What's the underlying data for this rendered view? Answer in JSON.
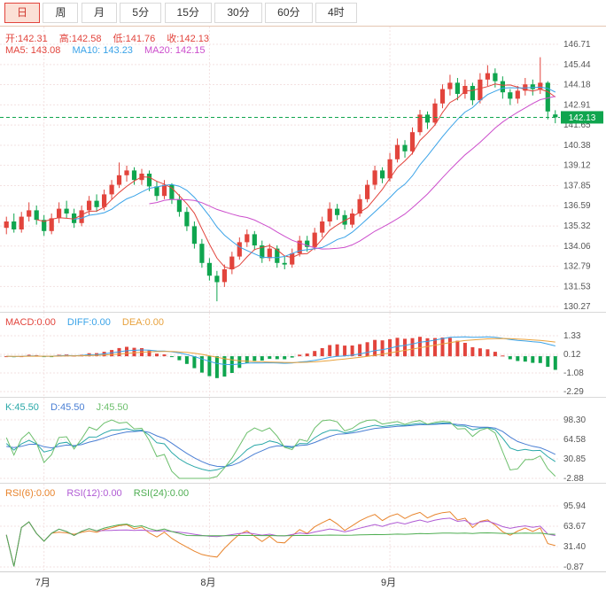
{
  "toolbar": {
    "tabs": [
      {
        "label": "日",
        "active": true
      },
      {
        "label": "周",
        "active": false
      },
      {
        "label": "月",
        "active": false
      },
      {
        "label": "5分",
        "active": false
      },
      {
        "label": "15分",
        "active": false
      },
      {
        "label": "30分",
        "active": false
      },
      {
        "label": "60分",
        "active": false
      },
      {
        "label": "4时",
        "active": false
      }
    ]
  },
  "main_chart": {
    "ohlc": {
      "open": "开:142.31",
      "high": "高:142.58",
      "low": "低:141.76",
      "close": "收:142.13"
    },
    "ma": {
      "ma5": "MA5: 143.08",
      "ma10": "MA10: 143.23",
      "ma20": "MA20: 142.15"
    },
    "y_ticks": [
      "146.71",
      "145.44",
      "144.18",
      "142.91",
      "141.65",
      "140.38",
      "139.12",
      "137.85",
      "136.59",
      "135.32",
      "134.06",
      "132.79",
      "131.53",
      "130.27"
    ],
    "price_marker": "142.13"
  },
  "macd_panel": {
    "label_macd": "MACD:0.00",
    "label_diff": "DIFF:0.00",
    "label_dea": "DEA:0.00",
    "y_ticks": [
      "1.33",
      "0.12",
      "-1.08",
      "-2.29"
    ]
  },
  "kdj_panel": {
    "label_k": "K:45.50",
    "label_d": "D:45.50",
    "label_j": "J:45.50",
    "y_ticks": [
      "98.30",
      "64.58",
      "30.85",
      "-2.88"
    ]
  },
  "rsi_panel": {
    "label_rsi6": "RSI(6):0.00",
    "label_rsi12": "RSI(12):0.00",
    "label_rsi24": "RSI(24):0.00",
    "y_ticks": [
      "95.94",
      "63.67",
      "31.40",
      "-0.87"
    ]
  },
  "colors": {
    "up": "#e2443c",
    "down": "#0fa54e",
    "marker_bg": "#0fa54e",
    "ma5": "#e2443c",
    "ma10": "#3aa3e8",
    "ma20": "#cc4ecc",
    "diff": "#3aa3e8",
    "dea": "#e8a23d",
    "k": "#2aa8a8",
    "d": "#4a7fd4",
    "j": "#6cbf6c",
    "rsi6": "#e8842c",
    "rsi12": "#b05bd4",
    "rsi24": "#4fae52",
    "grid": "#f3e1e1",
    "axis_text": "#555555"
  },
  "chart_data": {
    "type": "candlestick",
    "period": "日",
    "current_ohlc": {
      "open": 142.31,
      "high": 142.58,
      "low": 141.76,
      "close": 142.13
    },
    "overlays": [
      "MA5",
      "MA10",
      "MA20"
    ],
    "indicator_panels": [
      "MACD(12,26,9)",
      "KDJ(9,3,3)",
      "RSI(6,12,24)"
    ],
    "y_range_main": [
      130.27,
      146.71
    ],
    "y_range_macd": [
      -2.29,
      1.33
    ],
    "y_range_kdj": [
      -2.88,
      98.3
    ],
    "y_range_rsi": [
      -0.87,
      95.94
    ],
    "last_price": 142.13,
    "months": [
      {
        "label": "7月",
        "index": 5
      },
      {
        "label": "8月",
        "index": 27
      },
      {
        "label": "9月",
        "index": 51
      }
    ],
    "candles": [
      [
        135.2,
        135.9,
        134.8,
        135.6
      ],
      [
        135.6,
        136.1,
        134.9,
        135.1
      ],
      [
        135.1,
        136.2,
        134.9,
        135.9
      ],
      [
        135.9,
        136.8,
        135.6,
        136.3
      ],
      [
        136.3,
        136.6,
        135.4,
        135.7
      ],
      [
        135.7,
        136.0,
        134.7,
        135.0
      ],
      [
        135.0,
        136.1,
        134.8,
        135.8
      ],
      [
        135.8,
        136.8,
        135.5,
        136.4
      ],
      [
        136.4,
        136.9,
        135.8,
        136.1
      ],
      [
        136.1,
        136.4,
        135.2,
        135.5
      ],
      [
        135.5,
        136.6,
        135.3,
        136.3
      ],
      [
        136.3,
        137.2,
        136.0,
        136.9
      ],
      [
        136.9,
        137.3,
        136.2,
        136.5
      ],
      [
        136.5,
        137.6,
        136.3,
        137.3
      ],
      [
        137.3,
        138.2,
        137.0,
        137.9
      ],
      [
        137.9,
        139.3,
        137.7,
        138.5
      ],
      [
        138.5,
        139.1,
        138.1,
        138.8
      ],
      [
        138.8,
        139.0,
        137.9,
        138.2
      ],
      [
        138.2,
        138.9,
        137.9,
        138.6
      ],
      [
        138.6,
        138.8,
        137.5,
        137.8
      ],
      [
        137.8,
        138.1,
        136.9,
        137.2
      ],
      [
        137.2,
        138.2,
        137.0,
        137.9
      ],
      [
        137.9,
        138.0,
        136.7,
        137.0
      ],
      [
        137.0,
        137.3,
        135.9,
        136.2
      ],
      [
        136.2,
        136.5,
        135.0,
        135.3
      ],
      [
        135.3,
        135.6,
        133.9,
        134.2
      ],
      [
        134.2,
        134.5,
        132.7,
        133.0
      ],
      [
        133.0,
        133.3,
        131.9,
        132.2
      ],
      [
        132.2,
        132.5,
        130.6,
        131.8
      ],
      [
        131.8,
        132.9,
        131.5,
        132.6
      ],
      [
        132.6,
        133.7,
        132.3,
        133.4
      ],
      [
        133.4,
        134.6,
        133.2,
        134.3
      ],
      [
        134.3,
        135.1,
        134.0,
        134.8
      ],
      [
        134.8,
        135.0,
        133.8,
        134.1
      ],
      [
        134.1,
        134.4,
        133.0,
        133.3
      ],
      [
        133.3,
        134.2,
        133.1,
        133.9
      ],
      [
        133.9,
        134.1,
        132.7,
        133.0
      ],
      [
        133.0,
        133.4,
        132.6,
        132.9
      ],
      [
        132.9,
        133.9,
        132.7,
        133.6
      ],
      [
        133.6,
        134.7,
        133.4,
        134.4
      ],
      [
        134.4,
        134.7,
        133.7,
        134.0
      ],
      [
        134.0,
        135.2,
        133.8,
        134.9
      ],
      [
        134.9,
        135.9,
        134.6,
        135.6
      ],
      [
        135.6,
        136.8,
        135.3,
        136.4
      ],
      [
        136.4,
        136.7,
        135.7,
        136.0
      ],
      [
        136.0,
        136.3,
        135.1,
        135.4
      ],
      [
        135.4,
        136.4,
        135.2,
        136.1
      ],
      [
        136.1,
        137.3,
        135.9,
        137.0
      ],
      [
        137.0,
        138.2,
        136.8,
        137.9
      ],
      [
        137.9,
        139.1,
        137.6,
        138.8
      ],
      [
        138.8,
        139.0,
        138.0,
        138.3
      ],
      [
        138.3,
        139.9,
        138.1,
        139.5
      ],
      [
        139.5,
        140.8,
        139.3,
        140.4
      ],
      [
        140.4,
        140.7,
        139.6,
        140.0
      ],
      [
        140.0,
        141.5,
        139.8,
        141.2
      ],
      [
        141.2,
        142.6,
        141.0,
        142.3
      ],
      [
        142.3,
        142.5,
        141.4,
        141.8
      ],
      [
        141.8,
        143.3,
        141.6,
        143.0
      ],
      [
        143.0,
        144.2,
        142.7,
        143.9
      ],
      [
        143.9,
        144.8,
        143.5,
        144.3
      ],
      [
        144.3,
        144.6,
        143.2,
        143.6
      ],
      [
        143.6,
        144.5,
        143.3,
        144.1
      ],
      [
        144.1,
        144.3,
        142.9,
        143.2
      ],
      [
        143.2,
        144.9,
        143.0,
        144.5
      ],
      [
        144.5,
        145.4,
        144.1,
        144.9
      ],
      [
        144.9,
        145.2,
        144.0,
        144.4
      ],
      [
        144.4,
        144.7,
        143.3,
        143.7
      ],
      [
        143.7,
        143.9,
        142.9,
        143.3
      ],
      [
        143.3,
        144.1,
        143.0,
        143.8
      ],
      [
        143.8,
        144.6,
        143.5,
        144.2
      ],
      [
        144.2,
        144.5,
        143.5,
        143.9
      ],
      [
        143.9,
        145.9,
        143.6,
        144.3
      ],
      [
        144.3,
        144.4,
        142.0,
        142.5
      ],
      [
        142.31,
        142.58,
        141.76,
        142.13
      ]
    ]
  }
}
